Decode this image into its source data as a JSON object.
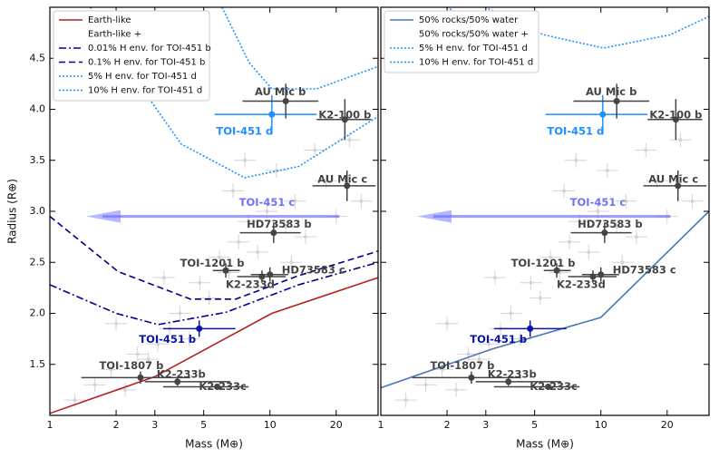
{
  "chart_data": [
    {
      "type": "line",
      "xlabel": "Mass (M⊕)",
      "ylabel": "Radius (R⊕)",
      "xscale": "log",
      "xlim": [
        1,
        31
      ],
      "ylim": [
        1.0,
        5.0
      ],
      "xticks": [
        1,
        2,
        3,
        5,
        10,
        20
      ],
      "yticks": [
        1.5,
        2.0,
        2.5,
        3.0,
        3.5,
        4.0,
        4.5
      ],
      "legend_position": "upper left",
      "legend_subtitle": "Earth-like +",
      "series": [
        {
          "name": "Earth-like",
          "color": "#b22222",
          "linestyle": "solid",
          "x": [
            1,
            3,
            10.2,
            31
          ],
          "y": [
            1.02,
            1.38,
            2.0,
            2.35
          ]
        },
        {
          "name": "0.01% H env. for TOI-451 b",
          "color": "#00008b",
          "linestyle": "dashdot",
          "x": [
            1,
            2,
            3.1,
            6.3,
            13.5,
            31
          ],
          "y": [
            2.28,
            2.0,
            1.89,
            2.01,
            2.28,
            2.5
          ]
        },
        {
          "name": "0.1% H env. for TOI-451 b",
          "color": "#00008b",
          "linestyle": "dashed",
          "x": [
            1,
            2.04,
            4.35,
            7,
            13.5,
            31
          ],
          "y": [
            2.95,
            2.41,
            2.14,
            2.14,
            2.37,
            2.61
          ]
        },
        {
          "name": "5% H env. for TOI-451 d",
          "color": "#1e90ff",
          "linestyle": "dotted",
          "x": [
            1.53,
            2.46,
            3.95,
            7.67,
            13.5,
            31
          ],
          "y": [
            5.0,
            4.29,
            3.66,
            3.33,
            3.44,
            3.93
          ]
        },
        {
          "name": "10% H env. for TOI-451 d",
          "color": "#1e90ff",
          "linestyle": "dotted",
          "x": [
            6.06,
            8.03,
            10.2,
            16.3,
            31
          ],
          "y": [
            5.0,
            4.46,
            4.2,
            4.2,
            4.42
          ]
        }
      ],
      "background": {
        "color": "#d4d4d4",
        "mass": [
          1.3,
          1.6,
          1.9,
          2.2,
          2.5,
          2.8,
          3.1,
          3.5,
          3.9,
          4.3,
          4.8,
          5.3,
          5.9,
          6.5,
          7.2,
          8,
          8.8,
          9.7,
          10.7,
          11.8,
          13,
          14.5,
          16,
          18,
          20,
          23,
          26,
          6.8,
          7.7,
          12.5,
          3.3,
          2.0
        ],
        "radius": [
          1.15,
          1.3,
          1.45,
          1.25,
          1.6,
          1.55,
          1.7,
          1.85,
          2.0,
          1.75,
          2.3,
          2.15,
          2.55,
          2.4,
          2.7,
          2.9,
          2.6,
          3.0,
          3.4,
          2.85,
          3.1,
          2.75,
          3.6,
          3.3,
          2.95,
          3.7,
          3.1,
          3.2,
          3.5,
          2.5,
          2.35,
          1.9
        ]
      },
      "planets": [
        {
          "name": "TOI-451 b",
          "color": "#0a14a8",
          "mass": 4.77,
          "radius": 1.85,
          "mass_lo": 3.27,
          "mass_hi": 6.97,
          "radius_err": 0.08
        },
        {
          "name": "TOI-451 c",
          "color": "#7070ff",
          "mass": 20.7,
          "radius": 2.95,
          "upper_limit": true
        },
        {
          "name": "TOI-451 d",
          "color": "#1e90ff",
          "mass": 10.2,
          "radius": 3.95,
          "mass_lo": 5.6,
          "mass_hi": 16.3,
          "radius_err": 0.19
        },
        {
          "name": "AU Mic b",
          "color": "#444444",
          "mass": 11.8,
          "radius": 4.08,
          "mass_lo": 7.5,
          "mass_hi": 16.6,
          "radius_err": 0.17
        },
        {
          "name": "K2-100 b",
          "color": "#444444",
          "mass": 21.9,
          "radius": 3.9,
          "mass_lo": 16.3,
          "mass_hi": 28.9,
          "radius_err": 0.2
        },
        {
          "name": "AU Mic c",
          "color": "#444444",
          "mass": 22.4,
          "radius": 3.25,
          "mass_lo": 15.6,
          "mass_hi": 30.2,
          "radius_err": 0.15
        },
        {
          "name": "HD73583 b",
          "color": "#444444",
          "mass": 10.4,
          "radius": 2.79,
          "mass_lo": 7.3,
          "mass_hi": 13.8,
          "radius_err": 0.1
        },
        {
          "name": "TOI-1201 b",
          "color": "#444444",
          "mass": 6.3,
          "radius": 2.42,
          "mass_lo": 5.5,
          "mass_hi": 7.3,
          "radius_err": 0.07
        },
        {
          "name": "HD73583 c",
          "color": "#444444",
          "mass": 10,
          "radius": 2.38,
          "mass_lo": 8.2,
          "mass_hi": 12.1,
          "radius_err": 0.07
        },
        {
          "name": "K2-233d",
          "color": "#444444",
          "mass": 9.2,
          "radius": 2.36,
          "mass_lo": 7.1,
          "mass_hi": 11.8,
          "radius_err": 0.06
        },
        {
          "name": "TOI-1807 b",
          "color": "#444444",
          "mass": 2.58,
          "radius": 1.37,
          "mass_lo": 1.39,
          "mass_hi": 4.34,
          "radius_err": 0.06
        },
        {
          "name": "K2-233b",
          "color": "#444444",
          "mass": 3.8,
          "radius": 1.33,
          "mass_lo": 2.7,
          "mass_hi": 6.6,
          "radius_err": 0.04
        },
        {
          "name": "K2-233c",
          "color": "#444444",
          "mass": 5.76,
          "radius": 1.28,
          "mass_lo": 3.27,
          "mass_hi": 8.0,
          "radius_err": 0.03
        }
      ]
    },
    {
      "type": "line",
      "xlabel": "Mass (M⊕)",
      "xscale": "log",
      "xlim": [
        1,
        31
      ],
      "ylim": [
        1.0,
        5.0
      ],
      "xticks": [
        1,
        2,
        3,
        5,
        10,
        20
      ],
      "yticks": [
        1.5,
        2.0,
        2.5,
        3.0,
        3.5,
        4.0,
        4.5
      ],
      "legend_position": "upper left",
      "legend_subtitle": "50% rocks/50% water +",
      "series": [
        {
          "name": "50% rocks/50% water",
          "color": "#4a78b8",
          "linestyle": "solid",
          "x": [
            1,
            3.2,
            10,
            31
          ],
          "y": [
            1.27,
            1.65,
            1.96,
            3.0
          ]
        },
        {
          "name": "5% H env. for TOI-451 d",
          "color": "#1e90ff",
          "linestyle": "dotted",
          "x": [
            2.97,
            5.5,
            10.3,
            20.6,
            31
          ],
          "y": [
            5.0,
            4.73,
            4.6,
            4.73,
            4.91
          ]
        },
        {
          "name": "10% H env. for TOI-451 d",
          "color": "#1e90ff",
          "linestyle": "dotted",
          "x": [
            1.99,
            2.4
          ],
          "y": [
            5.0,
            4.91
          ]
        }
      ],
      "background": {
        "color": "#d4d4d4",
        "mass": [
          1.3,
          1.6,
          1.9,
          2.2,
          2.5,
          2.8,
          3.1,
          3.5,
          3.9,
          4.3,
          4.8,
          5.3,
          5.9,
          6.5,
          7.2,
          8,
          8.8,
          9.7,
          10.7,
          11.8,
          13,
          14.5,
          16,
          18,
          20,
          23,
          26,
          6.8,
          7.7,
          12.5,
          3.3,
          2.0
        ],
        "radius": [
          1.15,
          1.3,
          1.45,
          1.25,
          1.6,
          1.55,
          1.7,
          1.85,
          2.0,
          1.75,
          2.3,
          2.15,
          2.55,
          2.4,
          2.7,
          2.9,
          2.6,
          3.0,
          3.4,
          2.85,
          3.1,
          2.75,
          3.6,
          3.3,
          2.95,
          3.7,
          3.1,
          3.2,
          3.5,
          2.5,
          2.35,
          1.9
        ]
      },
      "planets": [
        {
          "name": "TOI-451 b",
          "color": "#0a14a8",
          "mass": 4.77,
          "radius": 1.85,
          "mass_lo": 3.27,
          "mass_hi": 6.97,
          "radius_err": 0.08
        },
        {
          "name": "TOI-451 c",
          "color": "#7070ff",
          "mass": 20.7,
          "radius": 2.95,
          "upper_limit": true
        },
        {
          "name": "TOI-451 d",
          "color": "#1e90ff",
          "mass": 10.2,
          "radius": 3.95,
          "mass_lo": 5.6,
          "mass_hi": 16.3,
          "radius_err": 0.19
        },
        {
          "name": "AU Mic b",
          "color": "#444444",
          "mass": 11.8,
          "radius": 4.08,
          "mass_lo": 7.5,
          "mass_hi": 16.6,
          "radius_err": 0.17
        },
        {
          "name": "K2-100 b",
          "color": "#444444",
          "mass": 21.9,
          "radius": 3.9,
          "mass_lo": 16.3,
          "mass_hi": 28.9,
          "radius_err": 0.2
        },
        {
          "name": "AU Mic c",
          "color": "#444444",
          "mass": 22.4,
          "radius": 3.25,
          "mass_lo": 15.6,
          "mass_hi": 30.2,
          "radius_err": 0.15
        },
        {
          "name": "HD73583 b",
          "color": "#444444",
          "mass": 10.4,
          "radius": 2.79,
          "mass_lo": 7.3,
          "mass_hi": 13.8,
          "radius_err": 0.1
        },
        {
          "name": "TOI-1201 b",
          "color": "#444444",
          "mass": 6.3,
          "radius": 2.42,
          "mass_lo": 5.5,
          "mass_hi": 7.3,
          "radius_err": 0.07
        },
        {
          "name": "HD73583 c",
          "color": "#444444",
          "mass": 10,
          "radius": 2.38,
          "mass_lo": 8.2,
          "mass_hi": 12.1,
          "radius_err": 0.07
        },
        {
          "name": "K2-233d",
          "color": "#444444",
          "mass": 9.2,
          "radius": 2.36,
          "mass_lo": 7.1,
          "mass_hi": 11.8,
          "radius_err": 0.06
        },
        {
          "name": "TOI-1807 b",
          "color": "#444444",
          "mass": 2.58,
          "radius": 1.37,
          "mass_lo": 1.39,
          "mass_hi": 4.34,
          "radius_err": 0.06
        },
        {
          "name": "K2-233b",
          "color": "#444444",
          "mass": 3.8,
          "radius": 1.33,
          "mass_lo": 2.7,
          "mass_hi": 6.6,
          "radius_err": 0.04
        },
        {
          "name": "K2-233c",
          "color": "#444444",
          "mass": 5.76,
          "radius": 1.28,
          "mass_lo": 3.27,
          "mass_hi": 8.0,
          "radius_err": 0.03
        }
      ]
    }
  ]
}
